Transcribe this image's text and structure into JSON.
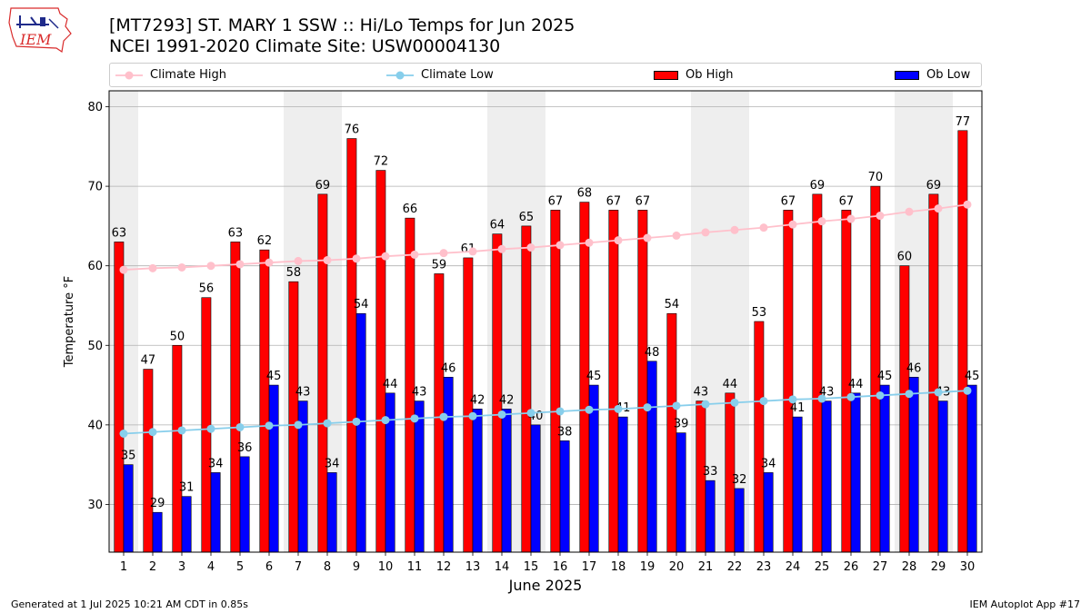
{
  "logo": {
    "text": "IEM",
    "color": "#d92b2b"
  },
  "header": {
    "title_line1": "[MT7293] ST. MARY 1 SSW :: Hi/Lo Temps for Jun 2025",
    "title_line2": "NCEI 1991-2020 Climate Site: USW00004130"
  },
  "legend": {
    "climate_high": "Climate High",
    "climate_low": "Climate Low",
    "ob_high": "Ob High",
    "ob_low": "Ob Low"
  },
  "colors": {
    "ob_high": "#ff0000",
    "ob_low": "#0000ff",
    "climate_high": "#ffc0cb",
    "climate_low": "#87ceeb",
    "weekend_shade": "#eeeeee",
    "grid": "#b0b0b0"
  },
  "footer": {
    "left": "Generated at 1 Jul 2025 10:21 AM CDT in 0.85s",
    "right": "IEM Autoplot App #17"
  },
  "chart_data": {
    "type": "bar",
    "xlabel": "June 2025",
    "ylabel": "Temperature °F",
    "x": [
      1,
      2,
      3,
      4,
      5,
      6,
      7,
      8,
      9,
      10,
      11,
      12,
      13,
      14,
      15,
      16,
      17,
      18,
      19,
      20,
      21,
      22,
      23,
      24,
      25,
      26,
      27,
      28,
      29,
      30
    ],
    "ylim": [
      24,
      82
    ],
    "yticks": [
      30,
      40,
      50,
      60,
      70,
      80
    ],
    "grid": true,
    "legend_position": "top",
    "shaded_days": [
      1,
      7,
      8,
      14,
      15,
      21,
      22,
      28,
      29
    ],
    "series": [
      {
        "name": "Ob High",
        "kind": "bar",
        "values": [
          63,
          47,
          50,
          56,
          63,
          62,
          58,
          69,
          76,
          72,
          66,
          59,
          61,
          64,
          65,
          67,
          68,
          67,
          67,
          54,
          43,
          44,
          53,
          67,
          69,
          67,
          70,
          60,
          69,
          77
        ]
      },
      {
        "name": "Ob Low",
        "kind": "bar",
        "values": [
          35,
          29,
          31,
          34,
          36,
          45,
          43,
          34,
          54,
          44,
          43,
          46,
          42,
          42,
          40,
          38,
          45,
          41,
          48,
          39,
          33,
          32,
          34,
          41,
          43,
          44,
          45,
          46,
          43,
          45
        ]
      },
      {
        "name": "Climate High",
        "kind": "line",
        "values": [
          59.5,
          59.7,
          59.8,
          60.0,
          60.2,
          60.4,
          60.6,
          60.7,
          60.9,
          61.2,
          61.4,
          61.6,
          61.8,
          62.1,
          62.3,
          62.6,
          62.9,
          63.2,
          63.5,
          63.8,
          64.2,
          64.5,
          64.8,
          65.2,
          65.6,
          65.9,
          66.3,
          66.8,
          67.2,
          67.7
        ]
      },
      {
        "name": "Climate Low",
        "kind": "line",
        "values": [
          38.9,
          39.1,
          39.3,
          39.5,
          39.7,
          39.9,
          40.0,
          40.2,
          40.4,
          40.6,
          40.8,
          41.0,
          41.1,
          41.3,
          41.5,
          41.7,
          41.9,
          42.0,
          42.2,
          42.4,
          42.6,
          42.8,
          43.0,
          43.2,
          43.3,
          43.5,
          43.7,
          43.9,
          44.1,
          44.3
        ]
      }
    ]
  }
}
